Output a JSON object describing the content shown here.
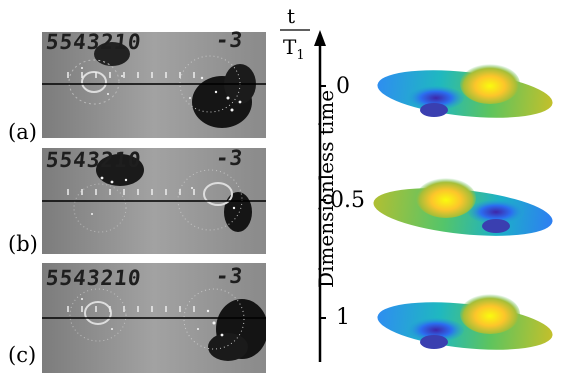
{
  "panels": [
    {
      "label": "(a)",
      "handwriting_left": "5543210",
      "handwriting_right": "-3"
    },
    {
      "label": "(b)",
      "handwriting_left": "5543210",
      "handwriting_right": "-3"
    },
    {
      "label": "(c)",
      "handwriting_left": "5543210",
      "handwriting_right": "-3"
    }
  ],
  "time_axis": {
    "fraction_numerator": "t",
    "fraction_denominator": "T",
    "fraction_subscript": "1",
    "title": "Dimensionless time",
    "ticks": [
      "0",
      "0.5",
      "1"
    ]
  },
  "colors": {
    "photo_bg": "#8e8e8e",
    "surface_low": "#3e26a8",
    "surface_mid": "#1fb1c8",
    "surface_high": "#f9fb0e"
  }
}
